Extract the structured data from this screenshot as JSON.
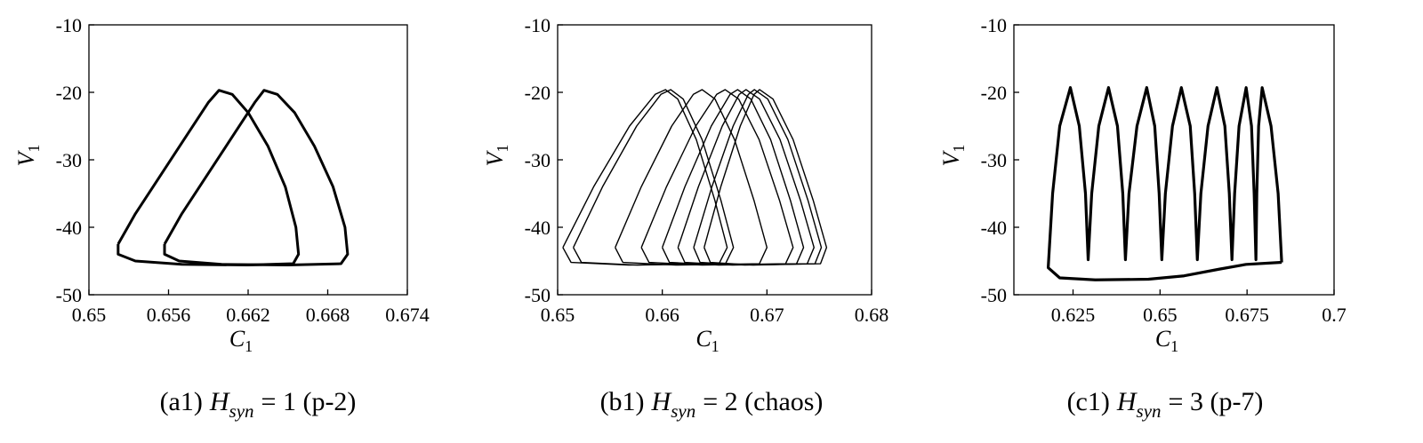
{
  "chart_data": [
    {
      "type": "line",
      "xlabel": "C",
      "xlabel_sub": "1",
      "ylabel": "V",
      "ylabel_sub": "1",
      "caption": {
        "prefix": "(a1)",
        "var": "H",
        "sub": "syn",
        "rest": "= 1 (p-2)"
      },
      "xlim": [
        0.65,
        0.674
      ],
      "xticks": [
        0.65,
        0.656,
        0.662,
        0.668,
        0.674
      ],
      "ylim": [
        -50,
        -10
      ],
      "yticks": [
        -50,
        -40,
        -30,
        -20,
        -10
      ],
      "line_width": 3,
      "series": [
        {
          "color": "#000000",
          "x": [
            0.6522,
            0.6535,
            0.6555,
            0.6575,
            0.659,
            0.6598,
            0.6608,
            0.662,
            0.6635,
            0.6648,
            0.6656,
            0.6658,
            0.6654,
            0.662,
            0.657,
            0.6535,
            0.6522,
            0.6522
          ],
          "values": [
            -42.5,
            -38,
            -32,
            -26,
            -21.5,
            -19.7,
            -20.3,
            -23,
            -28,
            -34,
            -40,
            -44,
            -45.4,
            -45.6,
            -45.5,
            -45,
            -44,
            -42.5
          ]
        },
        {
          "color": "#000000",
          "x": [
            0.6557,
            0.657,
            0.659,
            0.661,
            0.6625,
            0.6632,
            0.6642,
            0.6655,
            0.667,
            0.6684,
            0.6693,
            0.6695,
            0.669,
            0.665,
            0.66,
            0.6568,
            0.6557,
            0.6557
          ],
          "values": [
            -42.5,
            -38,
            -32,
            -26,
            -21.5,
            -19.7,
            -20.3,
            -23,
            -28,
            -34,
            -40,
            -44,
            -45.4,
            -45.6,
            -45.5,
            -45,
            -44,
            -42.5
          ]
        }
      ]
    },
    {
      "type": "line",
      "xlabel": "C",
      "xlabel_sub": "1",
      "ylabel": "V",
      "ylabel_sub": "1",
      "caption": {
        "prefix": "(b1)",
        "var": "H",
        "sub": "syn",
        "rest": "= 2 (chaos)"
      },
      "xlim": [
        0.65,
        0.68
      ],
      "xticks": [
        0.65,
        0.66,
        0.67,
        0.68
      ],
      "ylim": [
        -50,
        -10
      ],
      "yticks": [
        -50,
        -40,
        -30,
        -20,
        -10
      ],
      "line_width": 1.4,
      "series": [
        {
          "color": "#000000",
          "x": [
            0.6505,
            0.65344,
            0.65687,
            0.65932,
            0.6603,
            0.66148,
            0.66325,
            0.66502,
            0.6662,
            0.66542,
            0.65678,
            0.65128,
            0.6505
          ],
          "values": [
            -43,
            -34,
            -25,
            -20.3,
            -19.6,
            -21,
            -27,
            -36,
            -43,
            -45.4,
            -45.6,
            -45.2,
            -43
          ]
        },
        {
          "color": "#000000",
          "x": [
            0.6515,
            0.65429,
            0.65755,
            0.65987,
            0.6608,
            0.662,
            0.6638,
            0.6656,
            0.6668,
            0.66604,
            0.65762,
            0.65227,
            0.6515
          ],
          "values": [
            -43,
            -34,
            -25,
            -20.3,
            -19.6,
            -21,
            -27,
            -36,
            -43,
            -45.4,
            -45.6,
            -45.2,
            -43
          ]
        },
        {
          "color": "#000000",
          "x": [
            0.6555,
            0.65799,
            0.6609,
            0.66297,
            0.6638,
            0.66504,
            0.6669,
            0.66876,
            0.67,
            0.66928,
            0.6613,
            0.65623,
            0.6555
          ],
          "values": [
            -43,
            -34,
            -25,
            -20.3,
            -19.6,
            -21,
            -27,
            -36,
            -43,
            -45.4,
            -45.6,
            -45.2,
            -43
          ]
        },
        {
          "color": "#000000",
          "x": [
            0.658,
            0.6604,
            0.6632,
            0.6652,
            0.666,
            0.6673,
            0.66925,
            0.6712,
            0.6725,
            0.67178,
            0.6638,
            0.65873,
            0.658
          ],
          "values": [
            -43,
            -34,
            -25,
            -20.3,
            -19.6,
            -21,
            -27,
            -36,
            -43,
            -45.4,
            -45.6,
            -45.2,
            -43
          ]
        },
        {
          "color": "#000000",
          "x": [
            0.66,
            0.66216,
            0.66468,
            0.66648,
            0.6672,
            0.66846,
            0.67035,
            0.67224,
            0.6735,
            0.67283,
            0.6654,
            0.66068,
            0.66
          ],
          "values": [
            -43,
            -34,
            -25,
            -20.3,
            -19.6,
            -21,
            -27,
            -36,
            -43,
            -45.4,
            -45.6,
            -45.2,
            -43
          ]
        },
        {
          "color": "#000000",
          "x": [
            0.6615,
            0.66345,
            0.66573,
            0.66735,
            0.668,
            0.6693,
            0.67125,
            0.6732,
            0.6745,
            0.67385,
            0.6667,
            0.66215,
            0.6615
          ],
          "values": [
            -43,
            -34,
            -25,
            -20.3,
            -19.6,
            -21,
            -27,
            -36,
            -43,
            -45.4,
            -45.6,
            -45.2,
            -43
          ]
        },
        {
          "color": "#000000",
          "x": [
            0.663,
            0.66474,
            0.66677,
            0.66822,
            0.6688,
            0.67008,
            0.672,
            0.67392,
            0.6752,
            0.67459,
            0.66788,
            0.66361,
            0.663
          ],
          "values": [
            -43,
            -34,
            -25,
            -20.3,
            -19.6,
            -21,
            -27,
            -36,
            -43,
            -45.4,
            -45.6,
            -45.2,
            -43
          ]
        },
        {
          "color": "#000000",
          "x": [
            0.664,
            0.66559,
            0.66745,
            0.66877,
            0.6693,
            0.67058,
            0.6725,
            0.67442,
            0.6757,
            0.67512,
            0.66868,
            0.66459,
            0.664
          ],
          "values": [
            -43,
            -34,
            -25,
            -20.3,
            -19.6,
            -21,
            -27,
            -36,
            -43,
            -45.4,
            -45.6,
            -45.2,
            -43
          ]
        }
      ]
    },
    {
      "type": "line",
      "xlabel": "C",
      "xlabel_sub": "1",
      "ylabel": "V",
      "ylabel_sub": "1",
      "caption": {
        "prefix": "(c1)",
        "var": "H",
        "sub": "syn",
        "rest": "= 3 (p-7)"
      },
      "xlim": [
        0.608,
        0.7
      ],
      "xticks": [
        0.625,
        0.65,
        0.675,
        0.7
      ],
      "ylim": [
        -50,
        -10
      ],
      "yticks": [
        -50,
        -40,
        -30,
        -20,
        -10
      ],
      "line_width": 3.2,
      "series": [
        {
          "color": "#000000",
          "x": [
            0.68495,
            0.67474,
            0.66709,
            0.65689,
            0.64668,
            0.63138,
            0.62117,
            0.61786,
            0.61913,
            0.62117,
            0.62423,
            0.62679,
            0.62857,
            0.62934,
            0.63036,
            0.6324,
            0.6352,
            0.63776,
            0.63929,
            0.64005,
            0.64107,
            0.64337,
            0.64617,
            0.64847,
            0.64974,
            0.65051,
            0.65153,
            0.65357,
            0.65612,
            0.65867,
            0.65995,
            0.66071,
            0.66173,
            0.66378,
            0.66633,
            0.66862,
            0.6699,
            0.67066,
            0.67143,
            0.6727,
            0.67474,
            0.67628,
            0.67704,
            0.67755,
            0.6778,
            0.67832,
            0.67934,
            0.68189,
            0.68393,
            0.68495
          ],
          "values": [
            -45.2,
            -45.5,
            -46.2,
            -47.2,
            -47.7,
            -47.8,
            -47.5,
            -46,
            -35,
            -25,
            -19.3,
            -25,
            -35,
            -44.8,
            -35,
            -25,
            -19.3,
            -25,
            -35,
            -44.8,
            -35,
            -25,
            -19.3,
            -25,
            -35,
            -44.8,
            -35,
            -25,
            -19.3,
            -25,
            -35,
            -44.8,
            -35,
            -25,
            -19.3,
            -25,
            -35,
            -44.8,
            -35,
            -25,
            -19.3,
            -25,
            -35,
            -44.8,
            -35,
            -25,
            -19.3,
            -25,
            -35,
            -45.2
          ]
        }
      ]
    }
  ]
}
